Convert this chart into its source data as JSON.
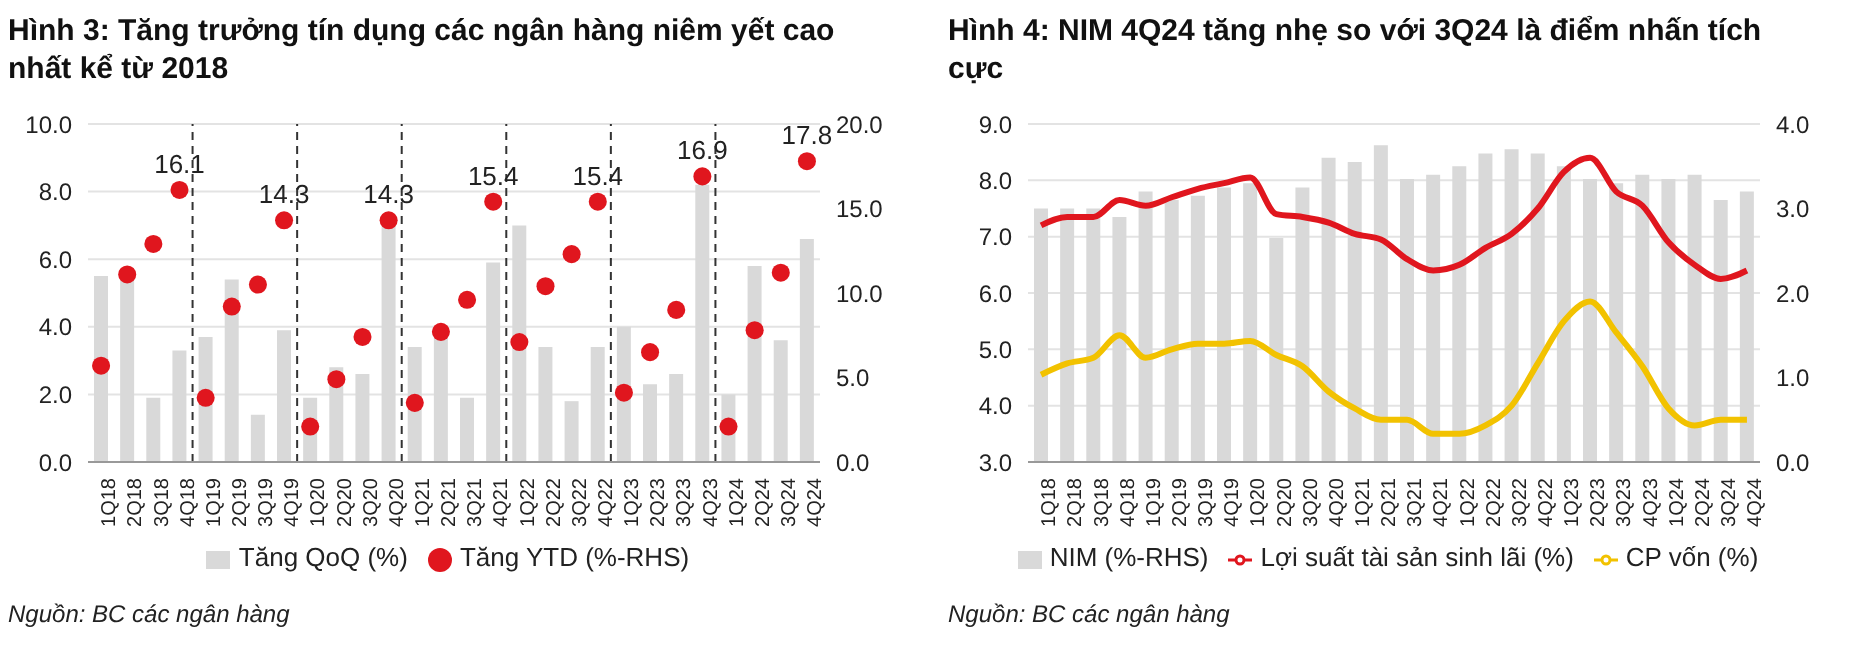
{
  "chart_data": [
    {
      "type": "bar",
      "title": "Hình 3: Tăng trưởng tín dụng các ngân hàng niêm yết cao nhất kể từ 2018",
      "categories": [
        "1Q18",
        "2Q18",
        "3Q18",
        "4Q18",
        "1Q19",
        "2Q19",
        "3Q19",
        "4Q19",
        "1Q20",
        "2Q20",
        "3Q20",
        "4Q20",
        "1Q21",
        "2Q21",
        "3Q21",
        "4Q21",
        "1Q22",
        "2Q22",
        "3Q22",
        "4Q22",
        "1Q23",
        "2Q23",
        "3Q23",
        "4Q23",
        "1Q24",
        "2Q24",
        "3Q24",
        "4Q24"
      ],
      "series": [
        {
          "name": "Tăng QoQ (%)",
          "color": "#d9d9d9",
          "values": [
            5.5,
            5.5,
            1.9,
            3.3,
            3.7,
            5.4,
            1.4,
            3.9,
            1.9,
            2.8,
            2.6,
            7.0,
            3.4,
            3.9,
            1.9,
            5.9,
            7.0,
            3.4,
            1.8,
            3.4,
            4.0,
            2.3,
            2.6,
            8.2,
            2.0,
            5.8,
            3.6,
            6.6
          ]
        },
        {
          "name": "Tăng YTD (%-RHS)",
          "type": "scatter",
          "axis": "y2",
          "color": "#e0161e",
          "values": [
            5.7,
            11.1,
            12.9,
            16.1,
            3.8,
            9.2,
            10.5,
            14.3,
            2.1,
            4.9,
            7.4,
            14.3,
            3.5,
            7.7,
            9.6,
            15.4,
            7.1,
            10.4,
            12.3,
            15.4,
            4.1,
            6.5,
            9.0,
            16.9,
            2.1,
            7.8,
            11.2,
            17.8
          ],
          "value_labels": [
            null,
            null,
            null,
            "16.1",
            null,
            null,
            null,
            "14.3",
            null,
            null,
            null,
            "14.3",
            null,
            null,
            null,
            "15.4",
            null,
            null,
            null,
            "15.4",
            null,
            null,
            null,
            "16.9",
            null,
            null,
            null,
            "17.8"
          ]
        }
      ],
      "ylim": [
        0,
        10
      ],
      "yticks": [
        {
          "value": 0,
          "label": "0.0"
        },
        {
          "value": 2,
          "label": "2.0"
        },
        {
          "value": 4,
          "label": "4.0"
        },
        {
          "value": 6,
          "label": "6.0"
        },
        {
          "value": 8,
          "label": "8.0"
        },
        {
          "value": 10,
          "label": "10.0"
        }
      ],
      "y2lim": [
        0,
        20
      ],
      "y2ticks": [
        {
          "value": 0,
          "label": "0.0"
        },
        {
          "value": 5,
          "label": "5.0"
        },
        {
          "value": 10,
          "label": "10.0"
        },
        {
          "value": 15,
          "label": "15.0"
        },
        {
          "value": 20,
          "label": "20.0"
        }
      ],
      "ref_lines": [
        {
          "axis": "x",
          "value": "4Q18",
          "color": "#333333",
          "line_style": "dashed"
        },
        {
          "axis": "x",
          "value": "4Q19",
          "color": "#333333",
          "line_style": "dashed"
        },
        {
          "axis": "x",
          "value": "4Q20",
          "color": "#333333",
          "line_style": "dashed"
        },
        {
          "axis": "x",
          "value": "4Q21",
          "color": "#333333",
          "line_style": "dashed"
        },
        {
          "axis": "x",
          "value": "4Q22",
          "color": "#333333",
          "line_style": "dashed"
        },
        {
          "axis": "x",
          "value": "4Q23",
          "color": "#333333",
          "line_style": "dashed"
        }
      ],
      "grid": "y",
      "legend": "bottom",
      "marker": "circle",
      "annotations": [
        "Nguồn: BC các ngân hàng"
      ]
    },
    {
      "type": "line",
      "title": "Hình 4: NIM 4Q24 tăng nhẹ so với 3Q24 là điểm nhấn tích cực",
      "categories": [
        "1Q18",
        "2Q18",
        "3Q18",
        "4Q18",
        "1Q19",
        "2Q19",
        "3Q19",
        "4Q19",
        "1Q20",
        "2Q20",
        "3Q20",
        "4Q20",
        "1Q21",
        "2Q21",
        "3Q21",
        "4Q21",
        "1Q22",
        "2Q22",
        "3Q22",
        "4Q22",
        "1Q23",
        "2Q23",
        "3Q23",
        "4Q23",
        "1Q24",
        "2Q24",
        "3Q24",
        "4Q24"
      ],
      "series": [
        {
          "name": "NIM (%-RHS)",
          "type": "bar",
          "axis": "y2",
          "color": "#d9d9d9",
          "values": [
            3.0,
            3.0,
            3.0,
            2.9,
            3.2,
            3.1,
            3.15,
            3.25,
            3.3,
            2.65,
            3.25,
            3.6,
            3.55,
            3.75,
            3.35,
            3.4,
            3.5,
            3.65,
            3.7,
            3.65,
            3.5,
            3.35,
            3.3,
            3.4,
            3.35,
            3.4,
            3.1,
            3.2
          ]
        },
        {
          "name": "Lợi suất tài sản sinh lãi (%)",
          "color": "#e0161e",
          "values": [
            7.2,
            7.35,
            7.35,
            7.65,
            7.55,
            7.7,
            7.85,
            7.95,
            8.05,
            7.4,
            7.35,
            7.25,
            7.05,
            6.95,
            6.6,
            6.4,
            6.5,
            6.8,
            7.05,
            7.5,
            8.15,
            8.4,
            7.8,
            7.55,
            6.9,
            6.5,
            6.25,
            6.4
          ]
        },
        {
          "name": "CP vốn (%)",
          "color": "#f2c200",
          "values": [
            4.55,
            4.75,
            4.85,
            5.25,
            4.85,
            5.0,
            5.1,
            5.1,
            5.15,
            4.9,
            4.7,
            4.25,
            3.95,
            3.75,
            3.75,
            3.5,
            3.5,
            3.65,
            4.0,
            4.75,
            5.5,
            5.85,
            5.3,
            4.7,
            3.95,
            3.65,
            3.75,
            3.75
          ]
        }
      ],
      "ylim": [
        3,
        9
      ],
      "yticks": [
        {
          "value": 3,
          "label": "3.0"
        },
        {
          "value": 4,
          "label": "4.0"
        },
        {
          "value": 5,
          "label": "5.0"
        },
        {
          "value": 6,
          "label": "6.0"
        },
        {
          "value": 7,
          "label": "7.0"
        },
        {
          "value": 8,
          "label": "8.0"
        },
        {
          "value": 9,
          "label": "9.0"
        }
      ],
      "y2lim": [
        0,
        4
      ],
      "y2ticks": [
        {
          "value": 0,
          "label": "0.0"
        },
        {
          "value": 1,
          "label": "1.0"
        },
        {
          "value": 2,
          "label": "2.0"
        },
        {
          "value": 3,
          "label": "3.0"
        },
        {
          "value": 4,
          "label": "4.0"
        }
      ],
      "grid": "y",
      "legend": "bottom",
      "marker": "none",
      "line_style": "solid",
      "annotations": [
        "Nguồn: BC các ngân hàng"
      ]
    }
  ]
}
